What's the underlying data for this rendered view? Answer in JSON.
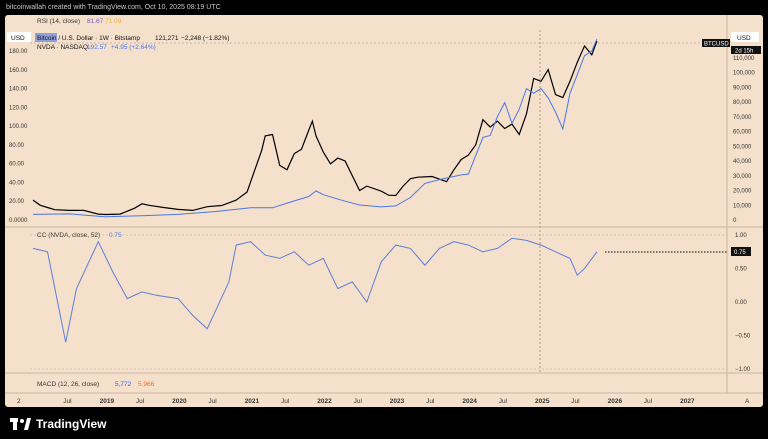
{
  "header": {
    "text": "bitcoinwallah created with TradingView.com, Oct 10, 2025 08:19 UTC"
  },
  "rsi": {
    "label": "RSI (14, close)",
    "v1": "81.67",
    "v2": "71.09"
  },
  "main_legend": {
    "currency": "USD",
    "btc_text": "Bitcoin / U.S. Dollar · 1W · Bitstamp",
    "btc_value": "121,271",
    "btc_change": "−2,248 (−1.82%)",
    "nvda_text": "NVDA · NASDAQ",
    "nvda_value": "192.57",
    "nvda_change": "+4.95 (+2.64%)"
  },
  "right_axis": {
    "currency": "USD",
    "btc_tag": "BTCUSD",
    "btc_time": "2d 15h",
    "ticks": [
      "110,000",
      "100,000",
      "90,000",
      "80,000",
      "70,000",
      "60,000",
      "50,000",
      "40,000",
      "30,000",
      "20,000",
      "10,000",
      "0"
    ]
  },
  "left_axis": {
    "ticks": [
      "180.00",
      "160.00",
      "140.00",
      "120.00",
      "100.00",
      "80.00",
      "60.00",
      "40.00",
      "20.00",
      "0.0000"
    ]
  },
  "cc": {
    "label": "CC (NVDA, close, 52)",
    "value": "0.75",
    "ticks": [
      "1.00",
      "0.75",
      "0.50",
      "0.00",
      "−0.50",
      "−1.00"
    ]
  },
  "macd": {
    "label": "MACD (12, 26, close)",
    "v1": "5,772",
    "v2": "5,966"
  },
  "time_axis": {
    "start": "2",
    "end": "A",
    "labels": [
      "Jul",
      "2019",
      "Jul",
      "2020",
      "Jul",
      "2021",
      "Jul",
      "2022",
      "Jul",
      "2023",
      "Jul",
      "2024",
      "Jul",
      "2025",
      "Jul",
      "2026",
      "Jul",
      "2027"
    ]
  },
  "colors": {
    "btc": "#000000",
    "nvda": "#4a76e8",
    "cc": "#5a7fd8",
    "rsi": "#7e57c2",
    "rsi2": "#f0c040",
    "macd1": "#2962ff",
    "macd2": "#ff6d00"
  },
  "footer": {
    "brand": "TradingView"
  },
  "chart_data": [
    {
      "type": "line",
      "title": "Bitcoin / U.S. Dollar · 1W · Bitstamp",
      "series": [
        {
          "name": "BTCUSD",
          "x": [
            2018.0,
            2018.1,
            2018.2,
            2018.3,
            2018.5,
            2018.7,
            2018.9,
            2019.0,
            2019.2,
            2019.4,
            2019.5,
            2019.6,
            2019.8,
            2020.0,
            2020.2,
            2020.4,
            2020.6,
            2020.8,
            2020.95,
            2021.05,
            2021.15,
            2021.2,
            2021.3,
            2021.4,
            2021.5,
            2021.6,
            2021.7,
            2021.8,
            2021.85,
            2021.9,
            2022.0,
            2022.1,
            2022.2,
            2022.3,
            2022.4,
            2022.5,
            2022.6,
            2022.8,
            2022.9,
            2023.0,
            2023.1,
            2023.2,
            2023.3,
            2023.5,
            2023.7,
            2023.8,
            2023.9,
            2024.0,
            2024.1,
            2024.2,
            2024.3,
            2024.4,
            2024.5,
            2024.6,
            2024.7,
            2024.8,
            2024.9,
            2025.0,
            2025.1,
            2025.2,
            2025.3,
            2025.4,
            2025.5,
            2025.6,
            2025.7,
            2025.77
          ],
          "values": [
            13500,
            10000,
            8500,
            7000,
            6500,
            6500,
            4000,
            3700,
            4000,
            8000,
            11000,
            10000,
            8500,
            7200,
            6500,
            9000,
            9800,
            13500,
            19000,
            33000,
            47000,
            57000,
            58000,
            37000,
            34000,
            45000,
            48000,
            61000,
            67000,
            57000,
            46000,
            38000,
            42000,
            40000,
            30000,
            20000,
            23000,
            19500,
            16800,
            16600,
            23000,
            28000,
            29000,
            29500,
            26000,
            34000,
            41000,
            44000,
            51000,
            68000,
            63000,
            67000,
            62000,
            65000,
            58000,
            72000,
            96000,
            94000,
            102000,
            85000,
            83000,
            94000,
            107000,
            118000,
            112000,
            121271
          ]
        }
      ],
      "ylim": [
        0,
        120000
      ]
    },
    {
      "type": "line",
      "title": "NVDA · NASDAQ",
      "series": [
        {
          "name": "NVDA",
          "x": [
            2018.0,
            2018.5,
            2018.9,
            2019.0,
            2019.5,
            2020.0,
            2020.5,
            2021.0,
            2021.3,
            2021.5,
            2021.8,
            2021.9,
            2022.0,
            2022.3,
            2022.5,
            2022.8,
            2023.0,
            2023.2,
            2023.4,
            2023.6,
            2023.9,
            2024.0,
            2024.2,
            2024.3,
            2024.4,
            2024.5,
            2024.6,
            2024.7,
            2024.8,
            2024.9,
            2025.0,
            2025.1,
            2025.2,
            2025.3,
            2025.4,
            2025.5,
            2025.6,
            2025.7,
            2025.77
          ],
          "values": [
            6,
            6.5,
            4,
            3.5,
            4.5,
            6,
            9,
            13,
            13,
            18,
            25,
            31,
            27,
            20,
            16,
            14,
            15,
            24,
            39,
            43,
            48,
            49,
            88,
            90,
            110,
            125,
            103,
            118,
            140,
            135,
            140,
            130,
            115,
            97,
            135,
            155,
            175,
            180,
            192.57
          ]
        }
      ],
      "ylim": [
        0,
        190
      ]
    },
    {
      "type": "line",
      "title": "CC (NVDA, close, 52)",
      "series": [
        {
          "name": "CC",
          "x": [
            2018.0,
            2018.2,
            2018.45,
            2018.6,
            2018.9,
            2019.1,
            2019.3,
            2019.5,
            2019.7,
            2020.0,
            2020.2,
            2020.4,
            2020.7,
            2020.8,
            2021.0,
            2021.2,
            2021.4,
            2021.6,
            2021.8,
            2022.0,
            2022.2,
            2022.4,
            2022.6,
            2022.8,
            2023.0,
            2023.2,
            2023.4,
            2023.6,
            2023.8,
            2024.0,
            2024.2,
            2024.4,
            2024.6,
            2024.8,
            2025.0,
            2025.2,
            2025.4,
            2025.5,
            2025.6,
            2025.77
          ],
          "values": [
            0.8,
            0.75,
            -0.6,
            0.2,
            0.9,
            0.45,
            0.05,
            0.15,
            0.1,
            0.05,
            -0.2,
            -0.4,
            0.3,
            0.85,
            0.9,
            0.7,
            0.65,
            0.75,
            0.55,
            0.65,
            0.2,
            0.3,
            0.0,
            0.6,
            0.85,
            0.8,
            0.55,
            0.8,
            0.9,
            0.85,
            0.75,
            0.8,
            0.95,
            0.92,
            0.85,
            0.75,
            0.65,
            0.4,
            0.5,
            0.75
          ]
        }
      ],
      "ylim": [
        -1,
        1
      ]
    }
  ]
}
